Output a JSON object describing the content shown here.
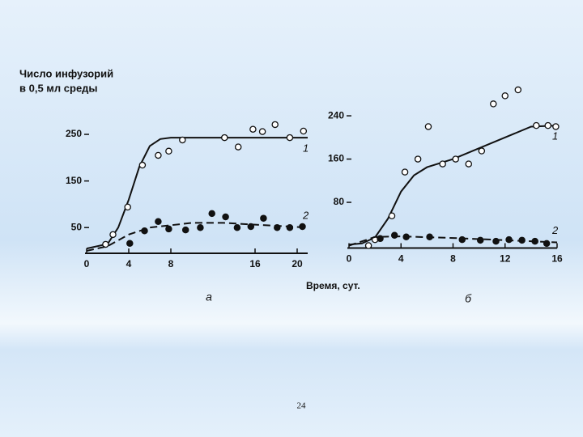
{
  "x_axis_label": "Время, сут.",
  "page_number": "24",
  "chart_data": [
    {
      "type": "line",
      "caption": "а",
      "ylabel": [
        "Число инфузорий",
        "в 0,5 мл среды"
      ],
      "xlim": [
        0,
        21
      ],
      "ylim": [
        0,
        290
      ],
      "xticks": [
        0,
        4,
        8,
        16,
        20
      ],
      "yticks": [
        50,
        150,
        250
      ],
      "series": [
        {
          "name": "1",
          "color": "#111111",
          "dash": false,
          "marker": "open",
          "curve_x": [
            0,
            2,
            3,
            4,
            5,
            6,
            7,
            8,
            21
          ],
          "curve": [
            5,
            15,
            50,
            110,
            180,
            225,
            240,
            243,
            243
          ],
          "points_x": [
            1.8,
            2.5,
            3.9,
            5.3,
            6.8,
            7.8,
            9.1,
            13.1,
            14.4,
            15.8,
            16.7,
            17.9,
            19.3,
            20.6
          ],
          "points": [
            14,
            35,
            94,
            184,
            205,
            214,
            238,
            243,
            223,
            261,
            256,
            271,
            243,
            257
          ]
        },
        {
          "name": "2",
          "color": "#111111",
          "dash": true,
          "marker": "filled",
          "curve_x": [
            0,
            2,
            4,
            6,
            10,
            13,
            21
          ],
          "curve": [
            0,
            10,
            35,
            50,
            60,
            60,
            50
          ],
          "points_x": [
            4.1,
            5.5,
            6.8,
            7.8,
            9.4,
            10.8,
            11.9,
            13.2,
            14.3,
            15.6,
            16.8,
            18.1,
            19.3,
            20.5
          ],
          "points": [
            16,
            43,
            63,
            47,
            45,
            50,
            80,
            73,
            50,
            52,
            70,
            50,
            50,
            52
          ]
        }
      ]
    },
    {
      "type": "line",
      "caption": "б",
      "xlim": [
        0,
        16
      ],
      "ylim": [
        0,
        300
      ],
      "xticks": [
        0,
        4,
        8,
        12,
        16
      ],
      "yticks": [
        80,
        160,
        240
      ],
      "series": [
        {
          "name": "1",
          "color": "#111111",
          "dash": false,
          "marker": "open",
          "curve_x": [
            0,
            1,
            2,
            3,
            4,
            5,
            6,
            8,
            10,
            12,
            14,
            16
          ],
          "curve": [
            2,
            4,
            15,
            50,
            100,
            130,
            145,
            160,
            180,
            200,
            220,
            222
          ],
          "points_x": [
            1.5,
            2.0,
            3.3,
            4.3,
            5.3,
            6.1,
            7.2,
            8.2,
            9.2,
            10.2,
            11.1,
            12.0,
            13.0,
            14.4,
            15.3,
            15.9
          ],
          "points": [
            0,
            11,
            55,
            136,
            160,
            220,
            151,
            160,
            151,
            175,
            262,
            277,
            288,
            222,
            222,
            220
          ]
        },
        {
          "name": "2",
          "color": "#111111",
          "dash": true,
          "marker": "filled",
          "curve_x": [
            0,
            1,
            2,
            4,
            8,
            12,
            16
          ],
          "curve": [
            0,
            8,
            16,
            17,
            14,
            10,
            6
          ],
          "points_x": [
            2.4,
            3.5,
            4.4,
            6.2,
            8.7,
            10.1,
            11.3,
            12.3,
            13.3,
            14.3,
            15.2
          ],
          "points": [
            13,
            19,
            16,
            16,
            11,
            10,
            8,
            11,
            10,
            8,
            4
          ]
        }
      ]
    }
  ]
}
